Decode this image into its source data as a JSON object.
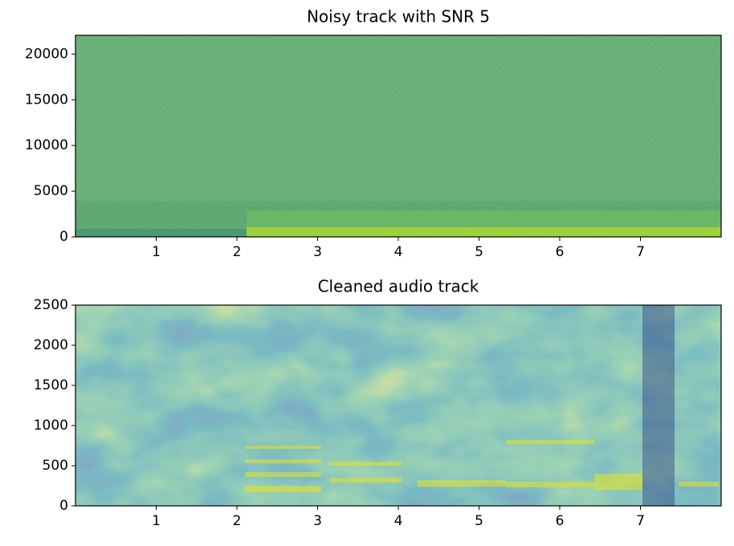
{
  "chart_data": [
    {
      "type": "spectrogram",
      "title": "Noisy track with SNR 5",
      "xlim": [
        0,
        8
      ],
      "xticks": [
        1,
        2,
        3,
        4,
        5,
        6,
        7
      ],
      "ylim": [
        0,
        22050
      ],
      "yticks": [
        0,
        5000,
        10000,
        15000,
        20000
      ]
    },
    {
      "type": "spectrogram",
      "title": "Cleaned audio track",
      "xlim": [
        0,
        8
      ],
      "xticks": [
        1,
        2,
        3,
        4,
        5,
        6,
        7
      ],
      "ylim": [
        0,
        2500
      ],
      "yticks": [
        0,
        500,
        1000,
        1500,
        2000,
        2500
      ]
    }
  ]
}
